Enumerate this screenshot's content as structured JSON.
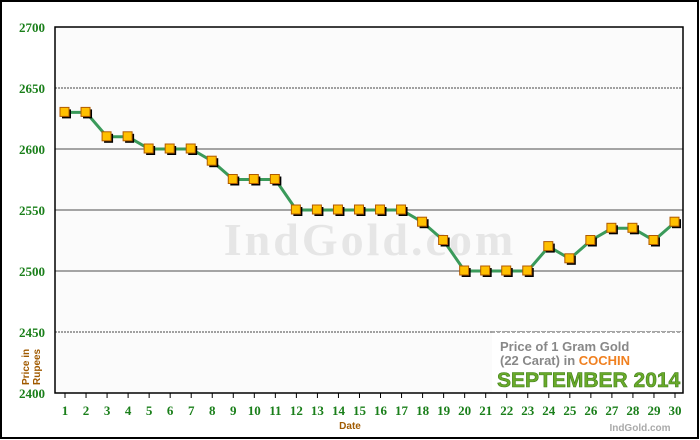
{
  "chart_data": {
    "type": "line",
    "xlabel": "Date",
    "ylabel": "Price in Rupees",
    "ylim": [
      2400,
      2700
    ],
    "yticks": [
      2400,
      2450,
      2500,
      2550,
      2600,
      2650,
      2700
    ],
    "x": [
      1,
      2,
      3,
      4,
      5,
      6,
      7,
      8,
      9,
      10,
      11,
      12,
      13,
      14,
      15,
      16,
      17,
      18,
      19,
      20,
      21,
      22,
      23,
      24,
      25,
      26,
      27,
      28,
      29,
      30
    ],
    "values": [
      2630,
      2630,
      2610,
      2610,
      2600,
      2600,
      2600,
      2590,
      2575,
      2575,
      2575,
      2550,
      2550,
      2550,
      2550,
      2550,
      2550,
      2540,
      2525,
      2500,
      2500,
      2500,
      2500,
      2520,
      2510,
      2525,
      2535,
      2535,
      2525,
      2540
    ],
    "grid": true,
    "line_color": "#3a9a5a",
    "marker_color": "#ffc000"
  },
  "legend_box": {
    "line1": "Price of 1 Gram Gold",
    "line2_prefix": "(22 Carat) in ",
    "city": "COCHIN",
    "month": "SEPTEMBER 2014"
  },
  "watermark": "IndGold.com",
  "credit": "IndGold.com"
}
